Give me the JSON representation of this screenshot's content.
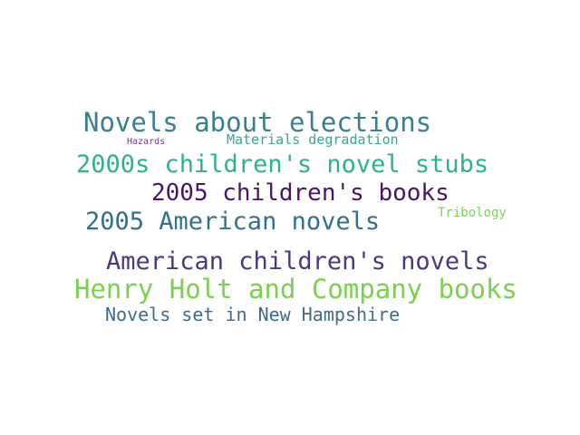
{
  "words": [
    {
      "text": "Novels about elections",
      "color": "#3a7f8e"
    },
    {
      "text": "Hazards",
      "color": "#6a3d8c"
    },
    {
      "text": "Materials degradation",
      "color": "#37a98b"
    },
    {
      "text": "2000s children's novel stubs",
      "color": "#2fb287"
    },
    {
      "text": "2005 children's books",
      "color": "#4b1466"
    },
    {
      "text": "Tribology",
      "color": "#7fd25a"
    },
    {
      "text": "2005 American novels",
      "color": "#33708c"
    },
    {
      "text": "American children's novels",
      "color": "#443b84"
    },
    {
      "text": "Henry Holt and Company books",
      "color": "#7bd052"
    },
    {
      "text": "Novels set in New Hampshire",
      "color": "#3d6a8f"
    }
  ]
}
